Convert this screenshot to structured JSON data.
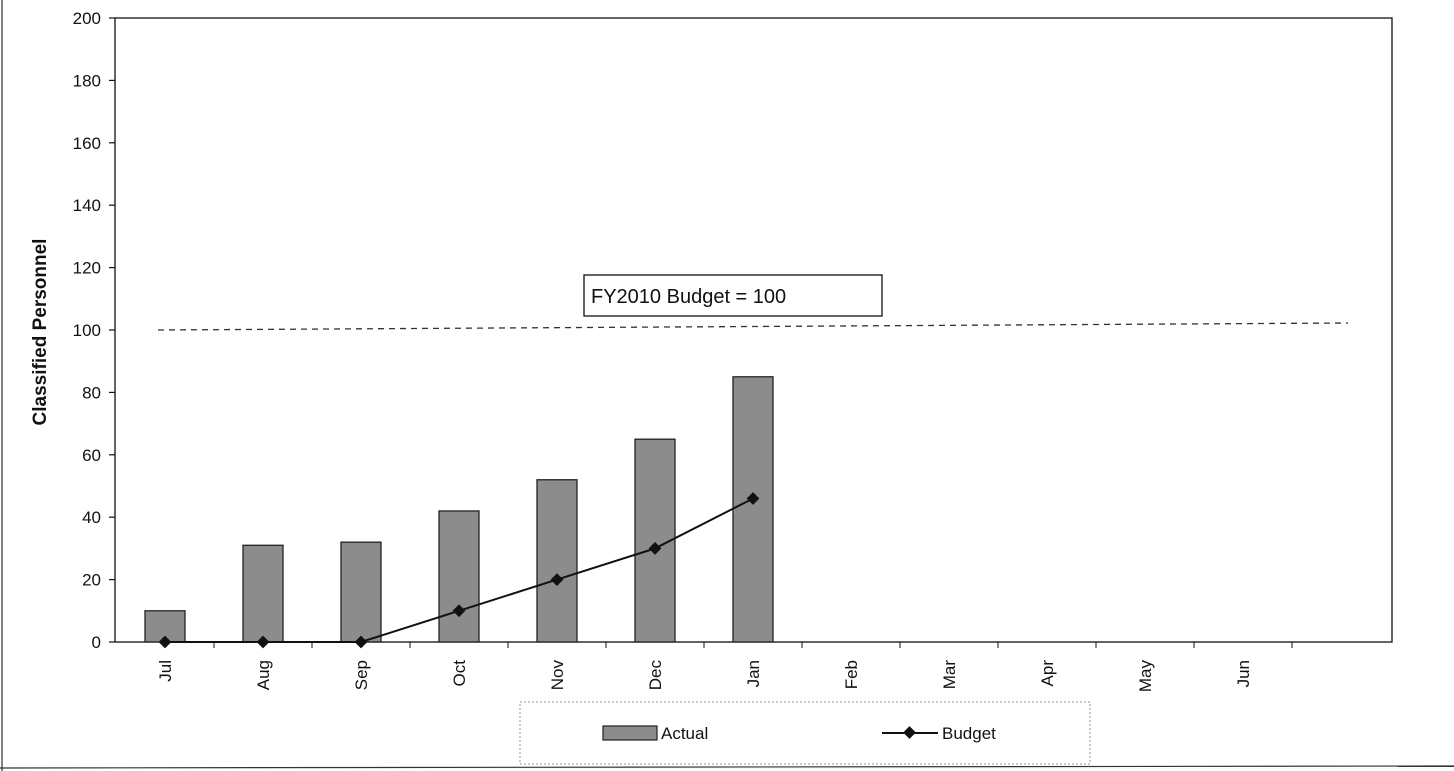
{
  "chart_data": {
    "type": "bar",
    "categories": [
      "Jul",
      "Aug",
      "Sep",
      "Oct",
      "Nov",
      "Dec",
      "Jan",
      "Feb",
      "Mar",
      "Apr",
      "May",
      "Jun"
    ],
    "series": [
      {
        "name": "Actual",
        "type": "bar",
        "values": [
          10,
          31,
          32,
          42,
          52,
          65,
          85,
          null,
          null,
          null,
          null,
          null
        ]
      },
      {
        "name": "Budget",
        "type": "line",
        "values": [
          0,
          0,
          0,
          10,
          20,
          30,
          46,
          null,
          null,
          null,
          null,
          null
        ]
      }
    ],
    "ylabel": "Classified Personnel",
    "xlabel": "",
    "ylim": [
      0,
      200
    ],
    "yticks": [
      0,
      20,
      40,
      60,
      80,
      100,
      120,
      140,
      160,
      180,
      200
    ],
    "reference_line": {
      "value": 100,
      "style": "dashed",
      "label": "FY2010 Budget = 100"
    },
    "grid": false,
    "legend_position": "bottom",
    "colors": {
      "bar_fill": "#8c8c8c",
      "bar_stroke": "#222222",
      "line": "#111111",
      "reference_line": "#333333"
    }
  }
}
